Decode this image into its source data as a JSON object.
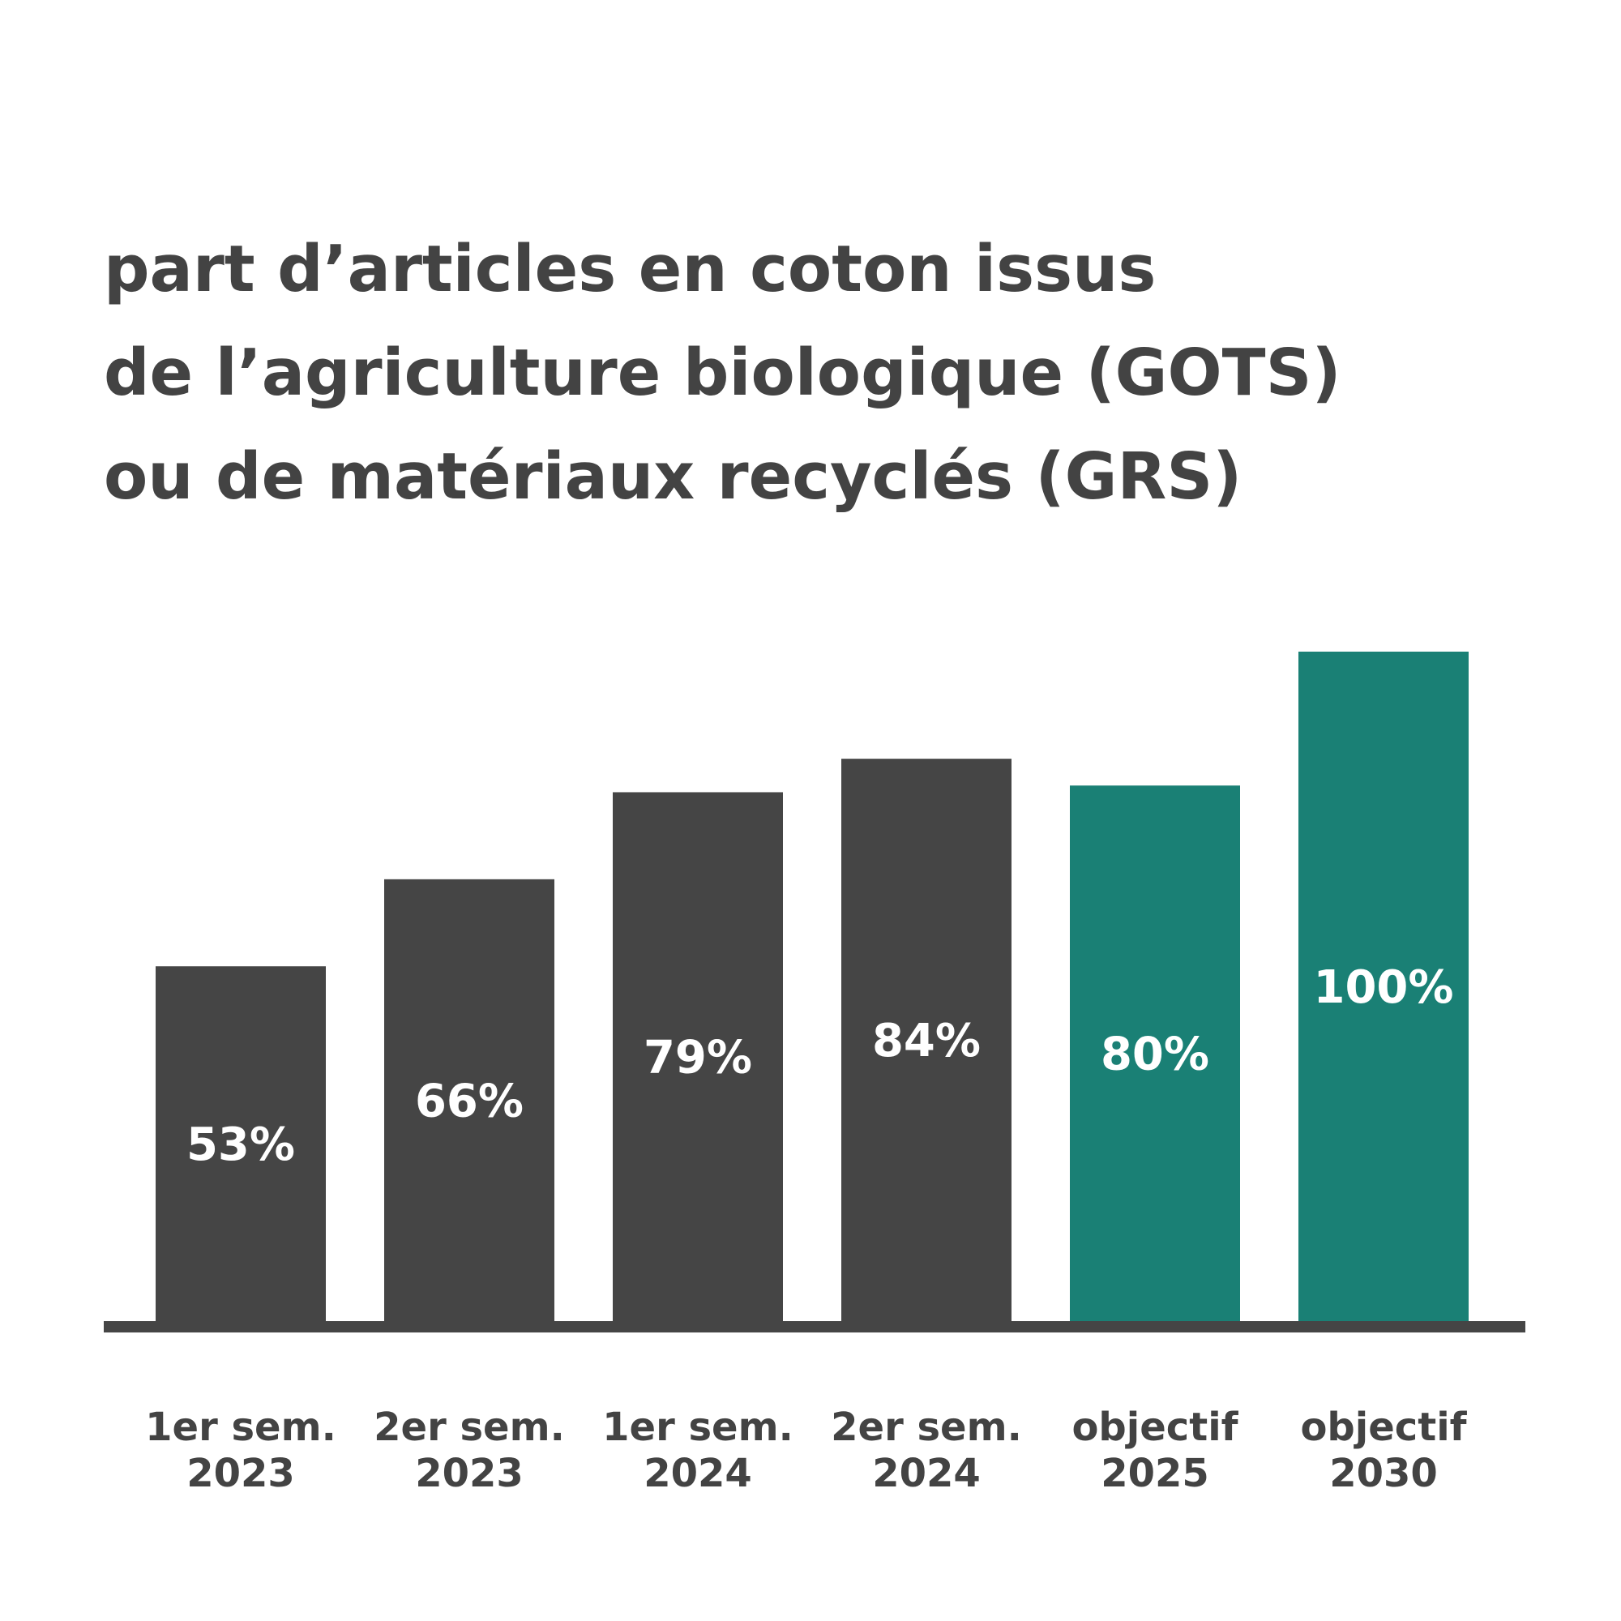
{
  "chart_data": {
    "type": "bar",
    "title_lines": [
      "part d’articles en coton issus",
      "de l’agriculture biologique (GOTS)",
      "ou de matériaux recyclés (GRS)"
    ],
    "categories": [
      [
        "1er sem.",
        "2023"
      ],
      [
        "2er sem.",
        "2023"
      ],
      [
        "1er sem.",
        "2024"
      ],
      [
        "2er sem.",
        "2024"
      ],
      [
        "objectif",
        "2025"
      ],
      [
        "objectif",
        "2030"
      ]
    ],
    "values": [
      53,
      66,
      79,
      84,
      80,
      100
    ],
    "data_labels": [
      "53%",
      "66%",
      "79%",
      "84%",
      "80%",
      "100%"
    ],
    "bar_colors": [
      "#454545",
      "#454545",
      "#454545",
      "#454545",
      "#1a8075",
      "#1a8075"
    ],
    "axis_color": "#454545",
    "label_color": "#434343",
    "ylim": [
      0,
      100
    ],
    "grid": false,
    "legend": "none"
  }
}
